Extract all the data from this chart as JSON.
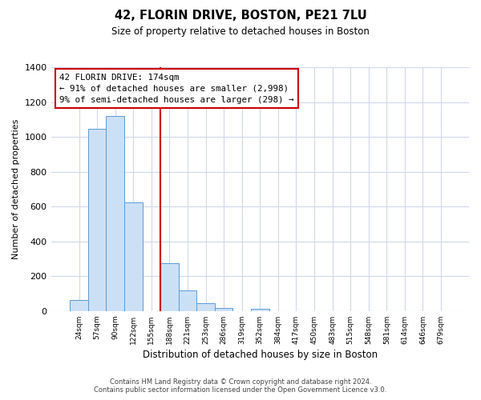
{
  "title": "42, FLORIN DRIVE, BOSTON, PE21 7LU",
  "subtitle": "Size of property relative to detached houses in Boston",
  "xlabel": "Distribution of detached houses by size in Boston",
  "ylabel": "Number of detached properties",
  "bar_labels": [
    "24sqm",
    "57sqm",
    "90sqm",
    "122sqm",
    "155sqm",
    "188sqm",
    "221sqm",
    "253sqm",
    "286sqm",
    "319sqm",
    "352sqm",
    "384sqm",
    "417sqm",
    "450sqm",
    "483sqm",
    "515sqm",
    "548sqm",
    "581sqm",
    "614sqm",
    "646sqm",
    "679sqm"
  ],
  "bar_values": [
    65,
    1048,
    1120,
    622,
    0,
    275,
    120,
    45,
    18,
    0,
    15,
    0,
    0,
    0,
    0,
    0,
    0,
    0,
    0,
    0,
    0
  ],
  "bar_color": "#cce0f5",
  "bar_edge_color": "#5b9bd5",
  "vline_x": 4.5,
  "vline_color": "#cc0000",
  "annotation_text": "42 FLORIN DRIVE: 174sqm\n← 91% of detached houses are smaller (2,998)\n9% of semi-detached houses are larger (298) →",
  "annotation_box_color": "#ffffff",
  "annotation_box_edge": "#cc0000",
  "ylim": [
    0,
    1400
  ],
  "yticks": [
    0,
    200,
    400,
    600,
    800,
    1000,
    1200,
    1400
  ],
  "footer_text": "Contains HM Land Registry data © Crown copyright and database right 2024.\nContains public sector information licensed under the Open Government Licence v3.0.",
  "grid_color": "#d0d8e8",
  "background_color": "#ffffff"
}
